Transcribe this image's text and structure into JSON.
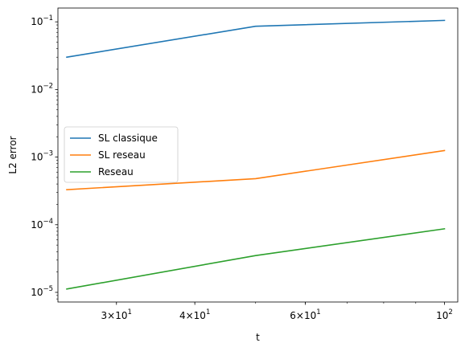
{
  "chart_data": {
    "type": "line",
    "title": "",
    "xlabel": "t",
    "ylabel": "L2 error",
    "xscale": "log",
    "yscale": "log",
    "xlim": [
      24.2,
      105
    ],
    "ylim": [
      7.2e-06,
      0.16
    ],
    "x": [
      25,
      50,
      100
    ],
    "x_ticks": [
      {
        "value": 30,
        "mantissa": "3",
        "exp": "1"
      },
      {
        "value": 40,
        "mantissa": "4",
        "exp": "1"
      },
      {
        "value": 60,
        "mantissa": "6",
        "exp": "1"
      },
      {
        "value": 100,
        "mantissa": "",
        "exp": "2"
      }
    ],
    "y_ticks": [
      {
        "value": 1e-05,
        "exp": "−5"
      },
      {
        "value": 0.0001,
        "exp": "−4"
      },
      {
        "value": 0.001,
        "exp": "−3"
      },
      {
        "value": 0.01,
        "exp": "−2"
      },
      {
        "value": 0.1,
        "exp": "−1"
      }
    ],
    "series": [
      {
        "name": "SL classique",
        "color": "#1f77b4",
        "values": [
          0.03,
          0.086,
          0.105
        ]
      },
      {
        "name": "SL reseau",
        "color": "#ff7f0e",
        "values": [
          0.00033,
          0.00048,
          0.00125
        ]
      },
      {
        "name": "Reseau",
        "color": "#2ca02c",
        "values": [
          1.12e-05,
          3.5e-05,
          8.7e-05
        ]
      }
    ],
    "legend_position": "center-left",
    "grid": false
  }
}
